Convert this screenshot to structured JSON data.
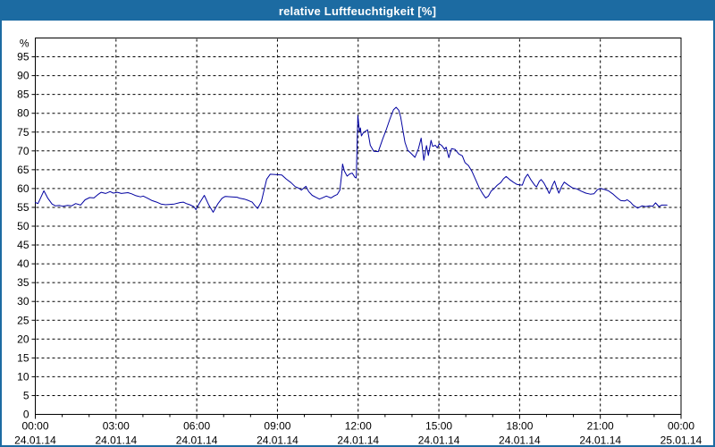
{
  "window": {
    "title": "relative Luftfeuchtigkeit [%]"
  },
  "colors": {
    "titlebar_bg": "#1c6ba2",
    "titlebar_text": "#ffffff",
    "window_border": "#1c6ba2",
    "plot_line": "#0000a0",
    "grid_line": "#000000",
    "axis_text": "#000000",
    "background": "#ffffff"
  },
  "chart_data": {
    "type": "line",
    "title": "relative Luftfeuchtigkeit [%]",
    "y_unit_label": "%",
    "grid": "dashed",
    "legend": "none",
    "y_axis": {
      "min": 0,
      "max": 100,
      "tick_step": 5,
      "tick_labels": [
        95,
        90,
        85,
        80,
        75,
        70,
        65,
        60,
        55,
        50,
        45,
        40,
        35,
        30,
        25,
        20,
        15,
        10,
        5
      ],
      "zero_label": "0"
    },
    "x_axis": {
      "min_hours": 0,
      "max_hours": 24,
      "minor_tick_hours": 1,
      "major_tick_hours": 3,
      "tick_labels": [
        {
          "hour": 0,
          "time": "00:00",
          "date": "24.01.14"
        },
        {
          "hour": 3,
          "time": "03:00",
          "date": "24.01.14"
        },
        {
          "hour": 6,
          "time": "06:00",
          "date": "24.01.14"
        },
        {
          "hour": 9,
          "time": "09:00",
          "date": "24.01.14"
        },
        {
          "hour": 12,
          "time": "12:00",
          "date": "24.01.14"
        },
        {
          "hour": 15,
          "time": "15:00",
          "date": "24.01.14"
        },
        {
          "hour": 18,
          "time": "18:00",
          "date": "24.01.14"
        },
        {
          "hour": 21,
          "time": "21:00",
          "date": "24.01.14"
        },
        {
          "hour": 24,
          "time": "00:00",
          "date": "25.01.14"
        }
      ]
    },
    "series": [
      {
        "name": "relative Luftfeuchtigkeit",
        "color": "#0000a0",
        "points_hours_percent": [
          [
            0.0,
            56.3
          ],
          [
            0.1,
            56.0
          ],
          [
            0.32,
            59.4
          ],
          [
            0.46,
            57.5
          ],
          [
            0.62,
            55.9
          ],
          [
            0.75,
            55.4
          ],
          [
            0.9,
            55.5
          ],
          [
            1.02,
            55.3
          ],
          [
            1.2,
            55.5
          ],
          [
            1.35,
            55.4
          ],
          [
            1.5,
            56.0
          ],
          [
            1.68,
            55.6
          ],
          [
            1.85,
            57.0
          ],
          [
            2.02,
            57.6
          ],
          [
            2.18,
            57.5
          ],
          [
            2.33,
            58.4
          ],
          [
            2.45,
            59.0
          ],
          [
            2.61,
            58.7
          ],
          [
            2.78,
            59.2
          ],
          [
            2.9,
            58.8
          ],
          [
            3.05,
            59.0
          ],
          [
            3.2,
            58.7
          ],
          [
            3.44,
            58.9
          ],
          [
            3.58,
            58.6
          ],
          [
            3.74,
            58.1
          ],
          [
            3.91,
            57.8
          ],
          [
            4.01,
            58.0
          ],
          [
            4.18,
            57.4
          ],
          [
            4.34,
            56.8
          ],
          [
            4.51,
            56.4
          ],
          [
            4.67,
            55.9
          ],
          [
            4.84,
            55.7
          ],
          [
            5.01,
            55.8
          ],
          [
            5.17,
            55.9
          ],
          [
            5.39,
            56.3
          ],
          [
            5.5,
            56.4
          ],
          [
            5.61,
            56.0
          ],
          [
            5.74,
            55.7
          ],
          [
            5.89,
            55.2
          ],
          [
            5.97,
            54.4
          ],
          [
            6.11,
            56.2
          ],
          [
            6.28,
            58.2
          ],
          [
            6.45,
            55.6
          ],
          [
            6.61,
            53.7
          ],
          [
            6.78,
            55.9
          ],
          [
            6.94,
            57.4
          ],
          [
            7.06,
            57.9
          ],
          [
            7.3,
            57.8
          ],
          [
            7.5,
            57.7
          ],
          [
            7.6,
            57.4
          ],
          [
            7.77,
            57.2
          ],
          [
            7.93,
            56.8
          ],
          [
            8.06,
            56.4
          ],
          [
            8.16,
            55.5
          ],
          [
            8.26,
            54.7
          ],
          [
            8.4,
            56.5
          ],
          [
            8.5,
            59.5
          ],
          [
            8.6,
            62.5
          ],
          [
            8.73,
            63.8
          ],
          [
            8.93,
            63.7
          ],
          [
            9.16,
            63.6
          ],
          [
            9.33,
            62.5
          ],
          [
            9.5,
            61.6
          ],
          [
            9.66,
            60.5
          ],
          [
            9.79,
            60.1
          ],
          [
            9.89,
            59.6
          ],
          [
            10.06,
            60.6
          ],
          [
            10.16,
            59.2
          ],
          [
            10.29,
            58.2
          ],
          [
            10.42,
            57.7
          ],
          [
            10.56,
            57.2
          ],
          [
            10.66,
            57.5
          ],
          [
            10.82,
            58.0
          ],
          [
            10.92,
            57.7
          ],
          [
            10.99,
            57.5
          ],
          [
            11.12,
            58.1
          ],
          [
            11.22,
            58.4
          ],
          [
            11.32,
            59.6
          ],
          [
            11.39,
            64.0
          ],
          [
            11.42,
            66.5
          ],
          [
            11.49,
            64.6
          ],
          [
            11.59,
            63.3
          ],
          [
            11.69,
            63.9
          ],
          [
            11.78,
            64.1
          ],
          [
            11.88,
            63.0
          ],
          [
            11.93,
            62.8
          ],
          [
            11.99,
            79.4
          ],
          [
            12.05,
            75.1
          ],
          [
            12.08,
            76.1
          ],
          [
            12.12,
            74.0
          ],
          [
            12.18,
            74.7
          ],
          [
            12.28,
            75.3
          ],
          [
            12.35,
            75.6
          ],
          [
            12.45,
            71.5
          ],
          [
            12.58,
            69.9
          ],
          [
            12.75,
            69.8
          ],
          [
            12.91,
            73.1
          ],
          [
            13.05,
            75.8
          ],
          [
            13.18,
            78.5
          ],
          [
            13.31,
            80.9
          ],
          [
            13.41,
            81.6
          ],
          [
            13.51,
            80.8
          ],
          [
            13.58,
            79.0
          ],
          [
            13.68,
            74.8
          ],
          [
            13.74,
            72.3
          ],
          [
            13.84,
            70.2
          ],
          [
            13.94,
            69.5
          ],
          [
            14.11,
            68.3
          ],
          [
            14.24,
            70.6
          ],
          [
            14.34,
            73.4
          ],
          [
            14.44,
            67.5
          ],
          [
            14.54,
            71.4
          ],
          [
            14.61,
            68.8
          ],
          [
            14.71,
            72.8
          ],
          [
            14.77,
            71.2
          ],
          [
            14.87,
            71.5
          ],
          [
            14.94,
            70.8
          ],
          [
            15.01,
            71.9
          ],
          [
            15.11,
            71.4
          ],
          [
            15.21,
            70.4
          ],
          [
            15.27,
            71.0
          ],
          [
            15.37,
            68.2
          ],
          [
            15.47,
            70.6
          ],
          [
            15.6,
            70.4
          ],
          [
            15.74,
            69.2
          ],
          [
            15.87,
            68.7
          ],
          [
            15.97,
            66.9
          ],
          [
            16.1,
            66.1
          ],
          [
            16.24,
            64.4
          ],
          [
            16.37,
            62.3
          ],
          [
            16.5,
            60.2
          ],
          [
            16.64,
            58.5
          ],
          [
            16.74,
            57.5
          ],
          [
            16.84,
            58.0
          ],
          [
            16.94,
            59.3
          ],
          [
            17.04,
            59.9
          ],
          [
            17.17,
            60.9
          ],
          [
            17.3,
            61.6
          ],
          [
            17.4,
            62.6
          ],
          [
            17.5,
            63.2
          ],
          [
            17.63,
            62.4
          ],
          [
            17.76,
            61.7
          ],
          [
            17.9,
            61.1
          ],
          [
            18.0,
            61.0
          ],
          [
            18.1,
            60.9
          ],
          [
            18.2,
            62.8
          ],
          [
            18.3,
            63.8
          ],
          [
            18.43,
            62.2
          ],
          [
            18.56,
            60.9
          ],
          [
            18.63,
            60.4
          ],
          [
            18.73,
            61.9
          ],
          [
            18.8,
            62.4
          ],
          [
            18.9,
            61.5
          ],
          [
            19.0,
            60.2
          ],
          [
            19.1,
            58.7
          ],
          [
            19.23,
            61.0
          ],
          [
            19.3,
            62.0
          ],
          [
            19.4,
            59.8
          ],
          [
            19.46,
            58.8
          ],
          [
            19.56,
            60.5
          ],
          [
            19.66,
            61.7
          ],
          [
            19.79,
            61.0
          ],
          [
            19.96,
            60.2
          ],
          [
            20.13,
            59.9
          ],
          [
            20.29,
            59.3
          ],
          [
            20.46,
            58.8
          ],
          [
            20.63,
            58.5
          ],
          [
            20.76,
            58.6
          ],
          [
            20.89,
            59.7
          ],
          [
            21.0,
            60.0
          ],
          [
            21.13,
            59.8
          ],
          [
            21.3,
            59.4
          ],
          [
            21.46,
            58.6
          ],
          [
            21.63,
            57.5
          ],
          [
            21.76,
            56.8
          ],
          [
            21.9,
            56.7
          ],
          [
            22.0,
            57.0
          ],
          [
            22.12,
            56.4
          ],
          [
            22.22,
            55.6
          ],
          [
            22.39,
            54.8
          ],
          [
            22.55,
            55.4
          ],
          [
            22.69,
            55.2
          ],
          [
            22.82,
            55.4
          ],
          [
            22.95,
            55.3
          ],
          [
            23.05,
            56.2
          ],
          [
            23.18,
            55.2
          ],
          [
            23.28,
            55.6
          ],
          [
            23.48,
            55.6
          ]
        ]
      }
    ]
  }
}
